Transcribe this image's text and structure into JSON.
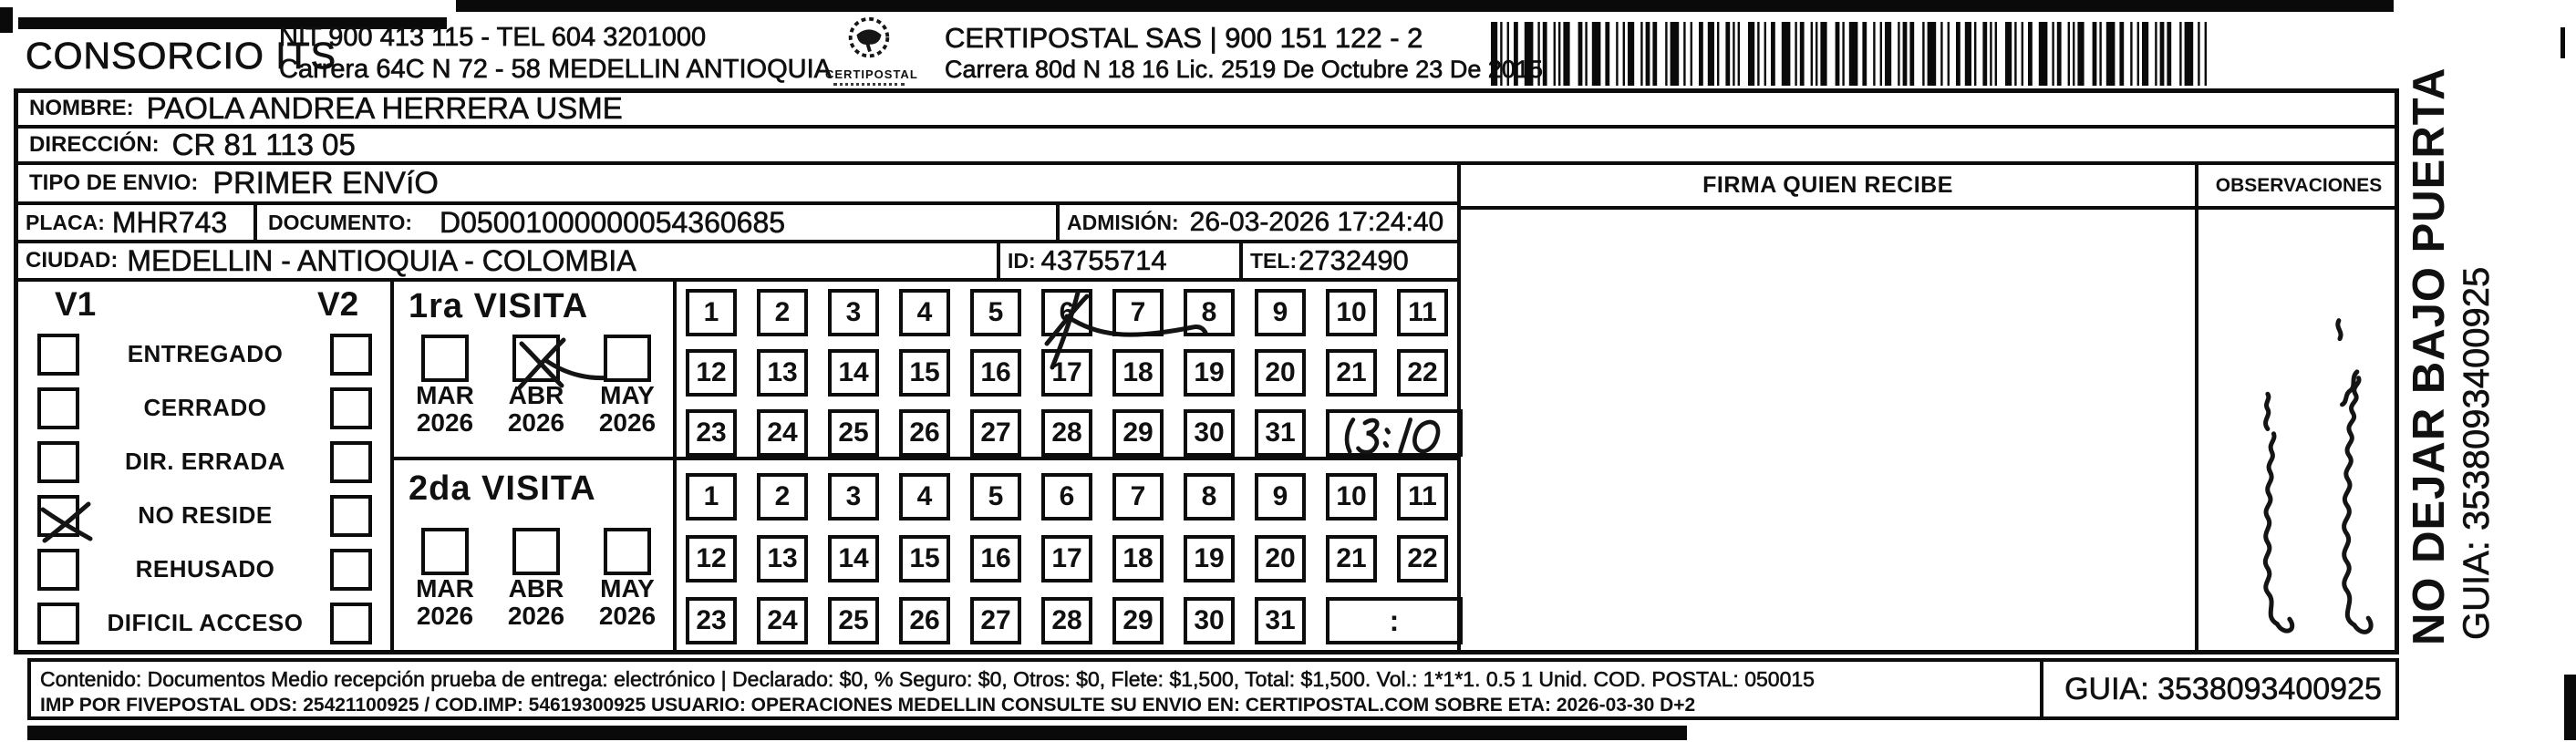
{
  "header": {
    "brand": "CONSORCIO ITS",
    "sender_nit": "NIT 900 413 115 - TEL 604 3201000",
    "sender_address": "Carrera 64C N 72 - 58 MEDELLIN ANTIOQUIA",
    "logo_name": "CERTIPOSTAL",
    "operator_line": "CERTIPOSTAL SAS | 900 151 122 - 2",
    "operator_address": "Carrera 80d N 18 16  Lic. 2519 De Octubre 23 De 2015"
  },
  "shipment": {
    "nombre_label": "NOMBRE:",
    "nombre_value": "PAOLA ANDREA HERRERA USME",
    "direccion_label": "DIRECCIÓN:",
    "direccion_value": "CR 81 113 05",
    "tipo_label": "TIPO DE ENVIO:",
    "tipo_value": "PRIMER ENVíO",
    "placa_label": "PLACA:",
    "placa_value": "MHR743",
    "documento_label": "DOCUMENTO:",
    "documento_value": "D05001000000054360685",
    "admision_label": "ADMISIÓN:",
    "admision_value": "26-03-2026 17:24:40",
    "ciudad_label": "CIUDAD:",
    "ciudad_value": "MEDELLIN - ANTIOQUIA - COLOMBIA",
    "id_label": "ID:",
    "id_value": "43755714",
    "tel_label": "TEL:",
    "tel_value": "2732490"
  },
  "columns": {
    "firma_header": "FIRMA QUIEN RECIBE",
    "observaciones_header": "OBSERVACIONES",
    "observaciones_note": "(nota manuscrita ilegible)"
  },
  "status_panel": {
    "col1_header": "V1",
    "col2_header": "V2",
    "options": [
      {
        "label": "ENTREGADO",
        "v1_checked": false,
        "v2_checked": false
      },
      {
        "label": "CERRADO",
        "v1_checked": false,
        "v2_checked": false
      },
      {
        "label": "DIR. ERRADA",
        "v1_checked": false,
        "v2_checked": false
      },
      {
        "label": "NO RESIDE",
        "v1_checked": true,
        "v2_checked": false
      },
      {
        "label": "REHUSADO",
        "v1_checked": false,
        "v2_checked": false
      },
      {
        "label": "DIFICIL ACCESO",
        "v1_checked": false,
        "v2_checked": false
      }
    ]
  },
  "visits": [
    {
      "title": "1ra VISITA",
      "months": [
        {
          "month": "MAR",
          "year": "2026",
          "checked": false
        },
        {
          "month": "ABR",
          "year": "2026",
          "checked": true
        },
        {
          "month": "MAY",
          "year": "2026",
          "checked": false
        }
      ],
      "day_rows": [
        [
          "1",
          "2",
          "3",
          "4",
          "5",
          "6",
          "7",
          "8",
          "9",
          "10",
          "11"
        ],
        [
          "12",
          "13",
          "14",
          "15",
          "16",
          "17",
          "18",
          "19",
          "20",
          "21",
          "22"
        ],
        [
          "23",
          "24",
          "25",
          "26",
          "27",
          "28",
          "29",
          "30",
          "31"
        ]
      ],
      "crossed_day": "6",
      "time_value": "13:10",
      "time_handwritten": true
    },
    {
      "title": "2da VISITA",
      "months": [
        {
          "month": "MAR",
          "year": "2026",
          "checked": false
        },
        {
          "month": "ABR",
          "year": "2026",
          "checked": false
        },
        {
          "month": "MAY",
          "year": "2026",
          "checked": false
        }
      ],
      "day_rows": [
        [
          "1",
          "2",
          "3",
          "4",
          "5",
          "6",
          "7",
          "8",
          "9",
          "10",
          "11"
        ],
        [
          "12",
          "13",
          "14",
          "15",
          "16",
          "17",
          "18",
          "19",
          "20",
          "21",
          "22"
        ],
        [
          "23",
          "24",
          "25",
          "26",
          "27",
          "28",
          "29",
          "30",
          "31"
        ]
      ],
      "crossed_day": null,
      "time_value": ":",
      "time_handwritten": false
    }
  ],
  "side_banner": {
    "line1": "NO DEJAR BAJO PUERTA",
    "line2": "GUIA: 3538093400925"
  },
  "footer": {
    "content_line": "Contenido: Documentos Medio recepción prueba de entrega: electrónico | Declarado: $0, % Seguro: $0, Otros: $0, Flete: $1,500, Total: $1,500. Vol.: 1*1*1. 0.5  1 Unid. COD. POSTAL: 050015",
    "imp_line": "IMP POR FIVEPOSTAL ODS: 25421100925 / COD.IMP: 54619300925 USUARIO: OPERACIONES MEDELLIN CONSULTE SU ENVIO EN: CERTIPOSTAL.COM SOBRE ETA: 2026-03-30 D+2",
    "guia_label": "GUIA: 3538093400925"
  }
}
